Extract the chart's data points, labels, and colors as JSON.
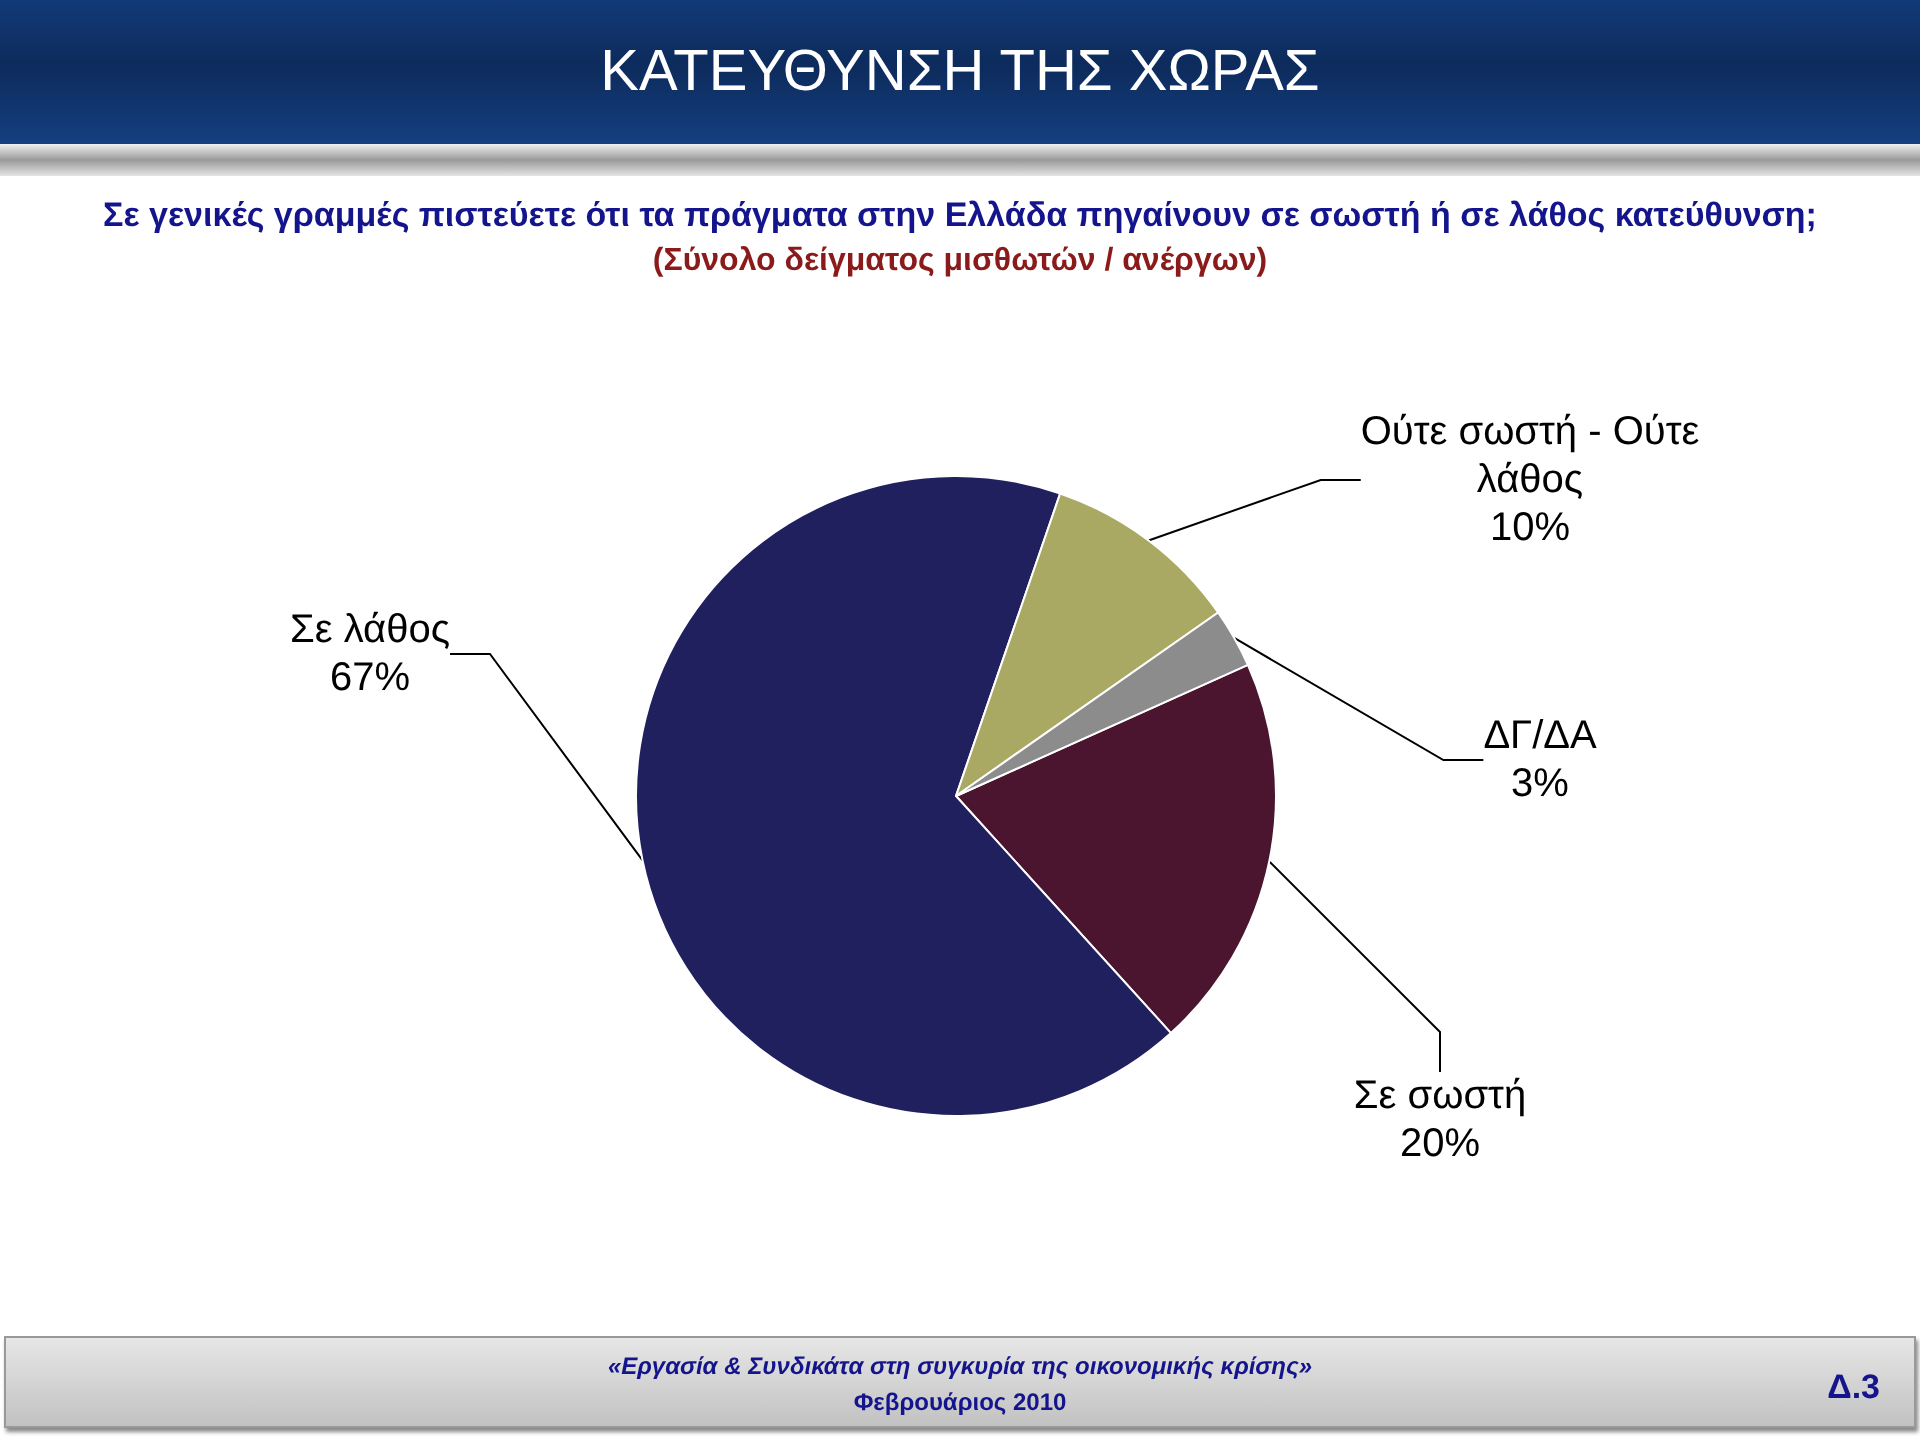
{
  "chart_data": {
    "type": "pie",
    "title": "ΚΑΤΕΥΘΥΝΣΗ ΤΗΣ ΧΩΡΑΣ",
    "subtitle": "Σε γενικές γραμμές πιστεύετε ότι τα πράγματα στην Ελλάδα πηγαίνουν σε σωστή ή σε λάθος κατεύθυνση;",
    "annotations": [
      "(Σύνολο δείγματος μισθωτών / ανέργων)",
      "«Εργασία & Συνδικάτα στη συγκυρία της οικονομικής κρίσης»",
      "Φεβρουάριος 2010",
      "Δ.3"
    ],
    "categories": [
      "Σε σωστή",
      "Σε λάθος",
      "Ούτε σωστή - Ούτε λάθος",
      "ΔΓ/ΔΑ"
    ],
    "values": [
      20,
      67,
      10,
      3
    ],
    "value_labels": [
      "20%",
      "67%",
      "10%",
      "3%"
    ],
    "colors": [
      "#4b1530",
      "#20205f",
      "#a9a964",
      "#8c8c8c"
    ]
  }
}
